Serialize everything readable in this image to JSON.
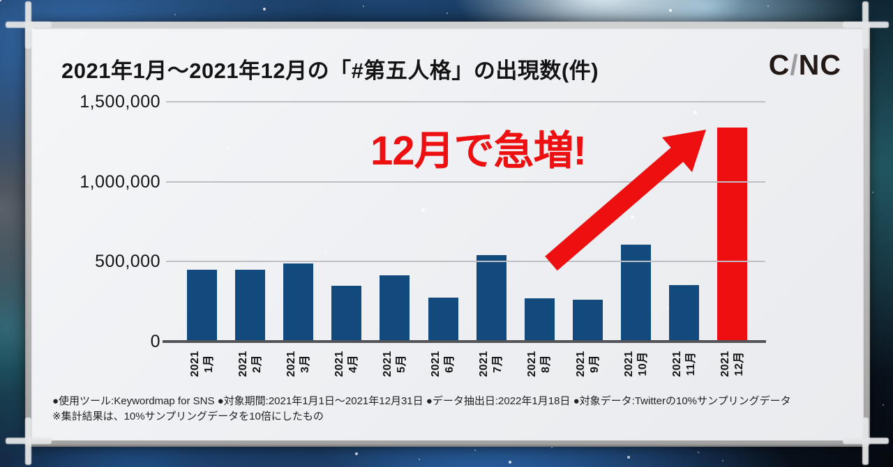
{
  "header": {
    "title": "2021年1月〜2021年12月の「#第五人格」の出現数(件)",
    "logo": {
      "c1": "C",
      "slash": "/",
      "n": "N",
      "c2": "C",
      "name": "CINC"
    }
  },
  "annotation": {
    "text": "12月で急増!"
  },
  "footnotes": {
    "line1": "●使用ツール:Keywordmap for SNS ●対象期間:2021年1月1日〜2021年12月31日 ●データ抽出日:2022年1月18日 ●対象データ:Twitterの10%サンプリングデータ",
    "line2": "※集計結果は、10%サンプリングデータを10倍にしたもの"
  },
  "colors": {
    "bar_blue": "#134a7d",
    "accent_red": "#ee0f10",
    "grid_gray": "#bcbfc3",
    "axis_gray": "#505358",
    "card_bg": "#eef0f3"
  },
  "chart_data": {
    "type": "bar",
    "title": "2021年1月〜2021年12月の「#第五人格」の出現数(件)",
    "categories": [
      {
        "line1": "2021",
        "line2": "1月"
      },
      {
        "line1": "2021",
        "line2": "2月"
      },
      {
        "line1": "2021",
        "line2": "3月"
      },
      {
        "line1": "2021",
        "line2": "4月"
      },
      {
        "line1": "2021",
        "line2": "5月"
      },
      {
        "line1": "2021",
        "line2": "6月"
      },
      {
        "line1": "2021",
        "line2": "7月"
      },
      {
        "line1": "2021",
        "line2": "8月"
      },
      {
        "line1": "2021",
        "line2": "9月"
      },
      {
        "line1": "2021",
        "line2": "10月"
      },
      {
        "line1": "2021",
        "line2": "11月"
      },
      {
        "line1": "2021",
        "line2": "12月"
      }
    ],
    "values": [
      450000,
      450000,
      490000,
      350000,
      415000,
      275000,
      540000,
      270000,
      260000,
      605000,
      355000,
      1340000
    ],
    "highlight_index": 11,
    "highlight_label": "2021 12月",
    "annotation": "12月で急増!",
    "xlabel": "",
    "ylabel": "",
    "ylim": [
      0,
      1500000
    ],
    "yticks": [
      0,
      500000,
      1000000,
      1500000
    ],
    "ytick_labels": [
      "0",
      "500,000",
      "1,000,000",
      "1,500,000"
    ],
    "grid": true,
    "legend": false
  }
}
